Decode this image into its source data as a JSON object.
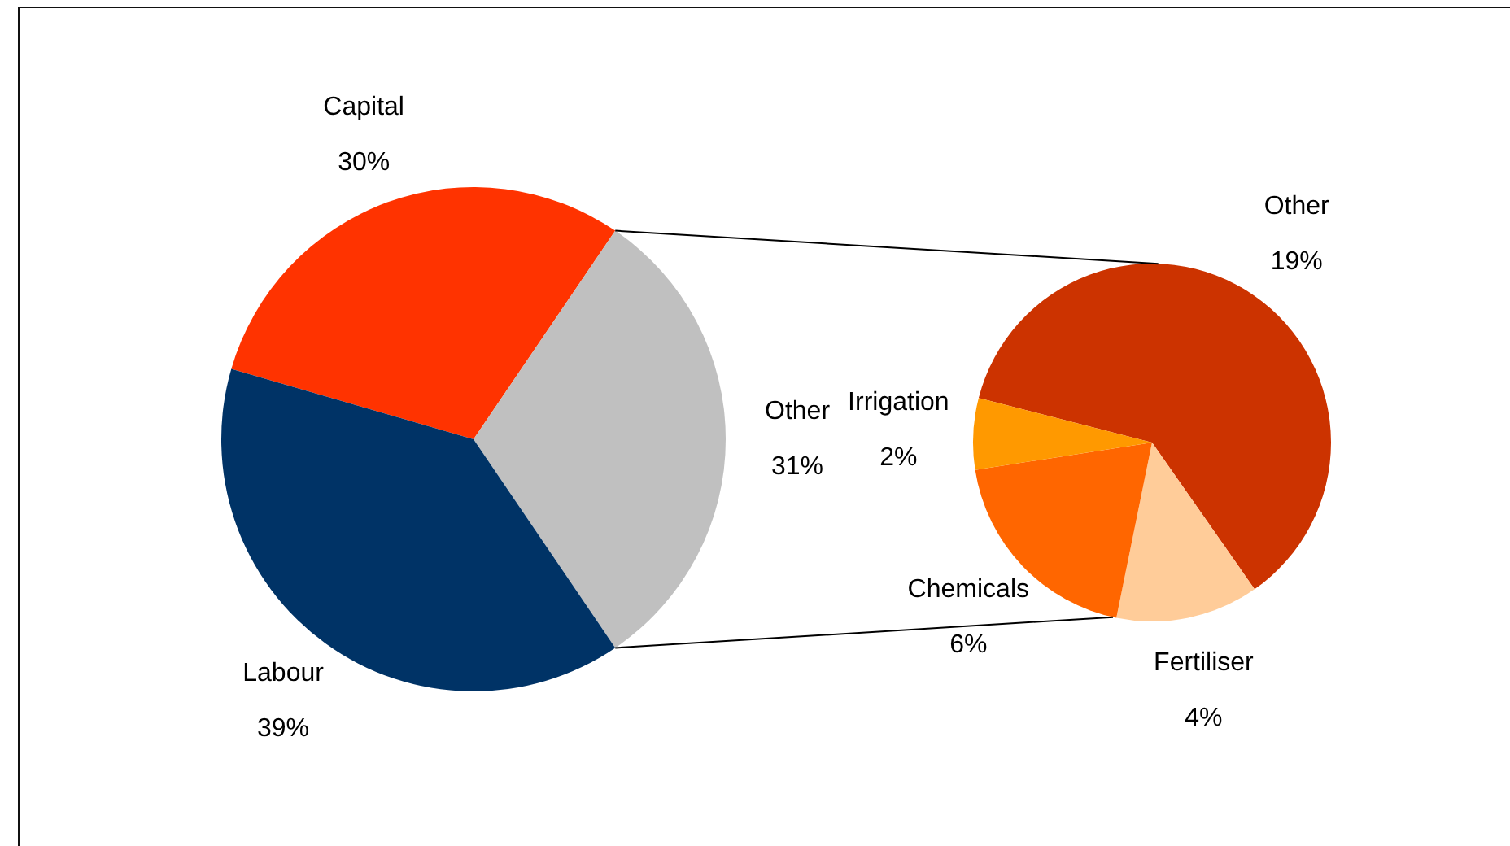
{
  "chart_data": [
    {
      "type": "pie",
      "categories": [
        "Capital",
        "Other",
        "Labour"
      ],
      "values": [
        30,
        31,
        39
      ],
      "value_labels": [
        "30%",
        "31%",
        "39%"
      ],
      "colors": [
        "#ff3300",
        "#c0c0c0",
        "#003366"
      ]
    },
    {
      "type": "pie",
      "categories": [
        "Other",
        "Fertiliser",
        "Chemicals",
        "Irrigation"
      ],
      "values": [
        19,
        4,
        6,
        2
      ],
      "value_labels": [
        "19%",
        "4%",
        "6%",
        "2%"
      ],
      "colors": [
        "#cc3300",
        "#ffcc99",
        "#ff6600",
        "#ff9900"
      ]
    }
  ]
}
